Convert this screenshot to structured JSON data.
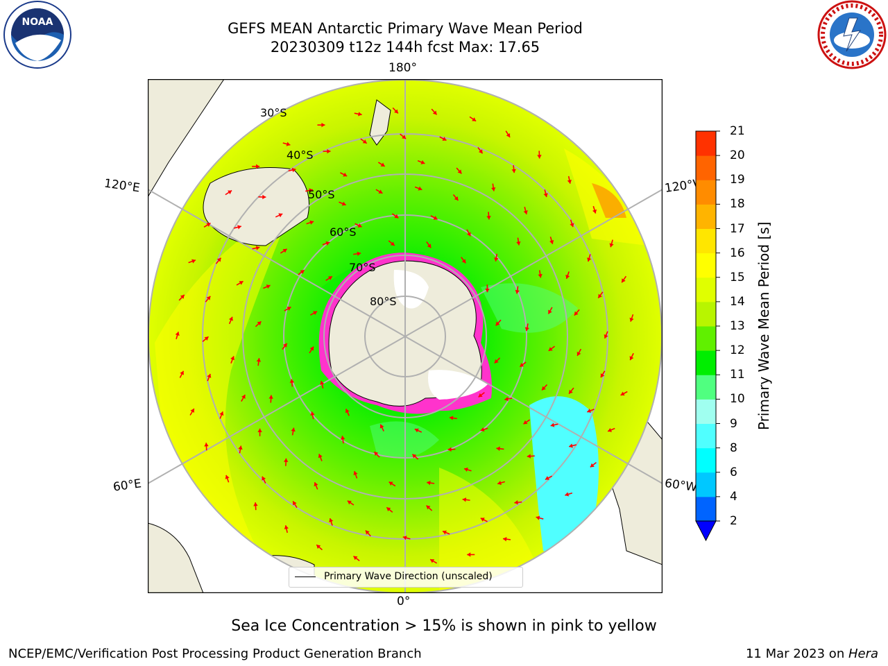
{
  "header": {
    "title_line1": "GEFS MEAN Antarctic Primary Wave Mean Period",
    "title_line2": "20230309 t12z 144h fcst   Max: 17.65"
  },
  "logos": {
    "left": "noaa-logo",
    "right": "nws-logo",
    "nws_text": "NATIONAL WEATHER SERVICE"
  },
  "map": {
    "lon_labels": {
      "top": "180°",
      "bottom": "0°",
      "left_upper": "120°E",
      "left_lower": "60°E",
      "right_upper": "120°W",
      "right_lower": "60°W"
    },
    "lat_labels": [
      "30°S",
      "40°S",
      "50°S",
      "60°S",
      "70°S",
      "80°S"
    ],
    "legend": "Primary Wave Direction (unscaled)",
    "colors": {
      "land": "#eeecdb",
      "ice_land": "#ffffff",
      "sea_ice_edge": "#ff33cc",
      "arrow": "#ff0000"
    }
  },
  "colorbar": {
    "label": "Primary Wave Mean Period [s]",
    "ticks": [
      "2",
      "4",
      "6",
      "8",
      "9",
      "10",
      "11",
      "12",
      "13",
      "14",
      "15",
      "16",
      "17",
      "18",
      "19",
      "20",
      "21"
    ],
    "colors": [
      "#0064ff",
      "#00c8ff",
      "#00ffff",
      "#50ffff",
      "#a0fff0",
      "#50ff80",
      "#00ee00",
      "#60f000",
      "#b8f500",
      "#e0ff00",
      "#ffff00",
      "#ffe600",
      "#ffb400",
      "#ff8c00",
      "#ff6400",
      "#ff3200",
      "#ff0000"
    ],
    "under_color": "#0000ff"
  },
  "caption": "Sea Ice Concentration > 15% is shown in pink to yellow",
  "footer": {
    "left": "NCEP/EMC/Verification Post Processing Product Generation Branch",
    "right_prefix": "11 Mar 2023 on ",
    "right_host": "Hera"
  }
}
